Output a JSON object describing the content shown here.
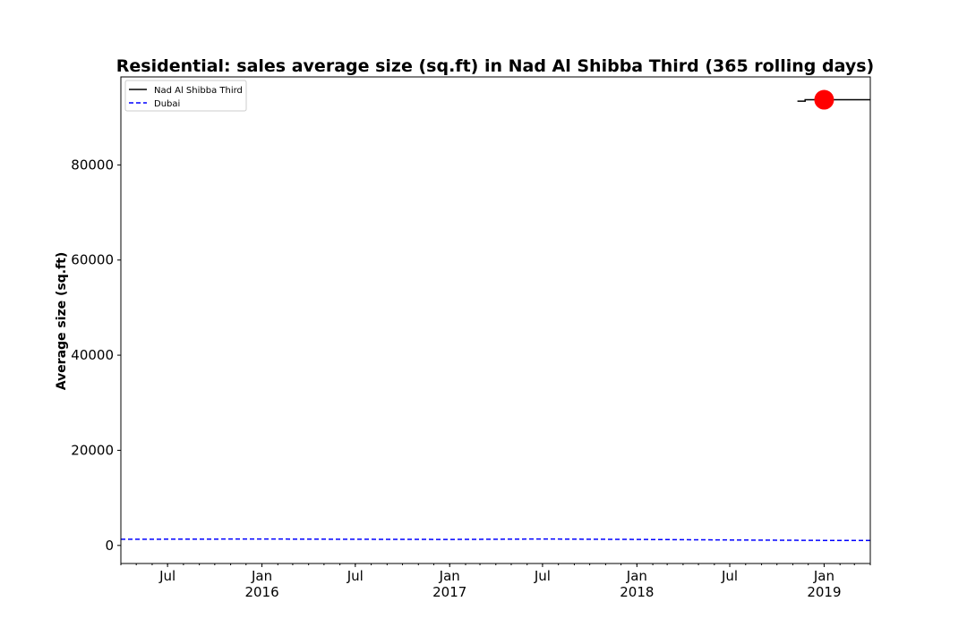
{
  "chart_data": {
    "type": "line",
    "title": "Residential: sales average size (sq.ft) in Nad Al Shibba Third (365 rolling days)",
    "xlabel": "",
    "ylabel": "Average size (sq.ft)",
    "xlim": [
      "2015-04-01",
      "2019-04-01"
    ],
    "ylim": [
      -3800,
      98500
    ],
    "y_ticks": [
      0,
      20000,
      40000,
      60000,
      80000
    ],
    "x_ticks": [
      {
        "date": "2015-07-01",
        "label": "Jul",
        "sublabel": ""
      },
      {
        "date": "2016-01-01",
        "label": "Jan",
        "sublabel": "2016"
      },
      {
        "date": "2016-07-01",
        "label": "Jul",
        "sublabel": ""
      },
      {
        "date": "2017-01-01",
        "label": "Jan",
        "sublabel": "2017"
      },
      {
        "date": "2017-07-01",
        "label": "Jul",
        "sublabel": ""
      },
      {
        "date": "2018-01-01",
        "label": "Jan",
        "sublabel": "2018"
      },
      {
        "date": "2018-07-01",
        "label": "Jul",
        "sublabel": ""
      },
      {
        "date": "2019-01-01",
        "label": "Jan",
        "sublabel": "2019"
      }
    ],
    "grid": false,
    "legend_position": "top-left",
    "series": [
      {
        "name": "Nad Al Shibba Third",
        "color": "#000000",
        "style": "solid",
        "x": [
          "2018-11-10",
          "2018-11-25",
          "2018-11-25",
          "2018-11-25",
          "2019-04-01"
        ],
        "y": [
          93400,
          93400,
          93400,
          93700,
          93700
        ]
      },
      {
        "name": "Dubai",
        "color": "#0000ff",
        "style": "dashed",
        "x": [
          "2015-04-01",
          "2016-01-01",
          "2016-07-01",
          "2017-01-01",
          "2017-07-01",
          "2018-01-01",
          "2018-07-01",
          "2019-01-01",
          "2019-04-01"
        ],
        "y": [
          1300,
          1350,
          1300,
          1250,
          1350,
          1250,
          1150,
          1050,
          1050
        ]
      }
    ],
    "highlight_point": {
      "x": "2019-01-01",
      "y": 93700,
      "color": "#ff0000"
    }
  }
}
